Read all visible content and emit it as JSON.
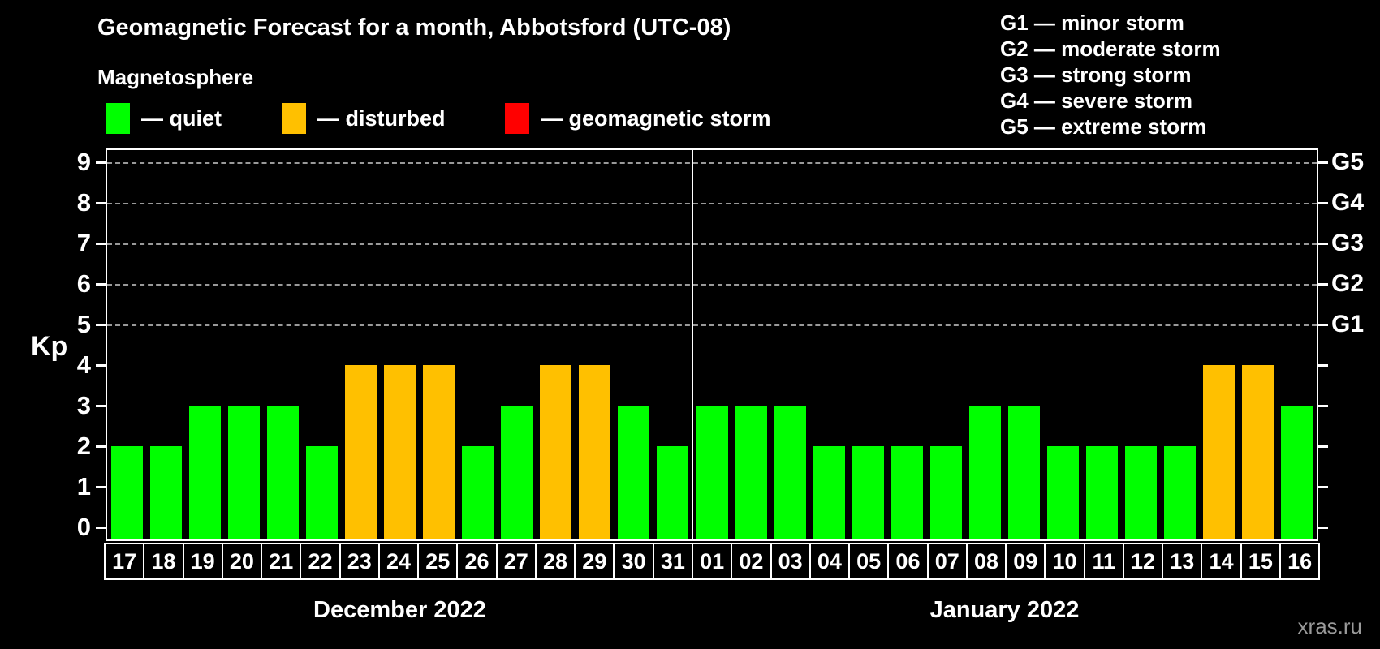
{
  "title": "Geomagnetic Forecast for a month, Abbotsford (UTC-08)",
  "subtitle": "Magnetosphere",
  "legend": [
    {
      "key": "quiet",
      "label": "— quiet",
      "color": "#00ff00"
    },
    {
      "key": "disturbed",
      "label": "— disturbed",
      "color": "#ffc000"
    },
    {
      "key": "storm",
      "label": "— geomagnetic storm",
      "color": "#ff0000"
    }
  ],
  "g_legend": [
    "G1 — minor storm",
    "G2 — moderate storm",
    "G3 — strong storm",
    "G4 — severe storm",
    "G5 — extreme storm"
  ],
  "watermark": "xras.ru",
  "chart_data": {
    "type": "bar",
    "ylabel": "Kp",
    "ylim": [
      0,
      9
    ],
    "yticks": [
      0,
      1,
      2,
      3,
      4,
      5,
      6,
      7,
      8,
      9
    ],
    "gridlines_at": [
      5,
      6,
      7,
      8,
      9
    ],
    "grid": "dashed horizontal at storm levels only",
    "legend_position": "top",
    "right_axis": [
      {
        "kp": 5,
        "label": "G1"
      },
      {
        "kp": 6,
        "label": "G2"
      },
      {
        "kp": 7,
        "label": "G3"
      },
      {
        "kp": 8,
        "label": "G4"
      },
      {
        "kp": 9,
        "label": "G5"
      }
    ],
    "status_colors": {
      "quiet": "#00ff00",
      "disturbed": "#ffc000",
      "storm": "#ff0000"
    },
    "months": [
      {
        "label": "December 2022",
        "bars": [
          {
            "day": "17",
            "kp": 2,
            "status": "quiet"
          },
          {
            "day": "18",
            "kp": 2,
            "status": "quiet"
          },
          {
            "day": "19",
            "kp": 3,
            "status": "quiet"
          },
          {
            "day": "20",
            "kp": 3,
            "status": "quiet"
          },
          {
            "day": "21",
            "kp": 3,
            "status": "quiet"
          },
          {
            "day": "22",
            "kp": 2,
            "status": "quiet"
          },
          {
            "day": "23",
            "kp": 4,
            "status": "disturbed"
          },
          {
            "day": "24",
            "kp": 4,
            "status": "disturbed"
          },
          {
            "day": "25",
            "kp": 4,
            "status": "disturbed"
          },
          {
            "day": "26",
            "kp": 2,
            "status": "quiet"
          },
          {
            "day": "27",
            "kp": 3,
            "status": "quiet"
          },
          {
            "day": "28",
            "kp": 4,
            "status": "disturbed"
          },
          {
            "day": "29",
            "kp": 4,
            "status": "disturbed"
          },
          {
            "day": "30",
            "kp": 3,
            "status": "quiet"
          },
          {
            "day": "31",
            "kp": 2,
            "status": "quiet"
          }
        ]
      },
      {
        "label": "January 2022",
        "bars": [
          {
            "day": "01",
            "kp": 3,
            "status": "quiet"
          },
          {
            "day": "02",
            "kp": 3,
            "status": "quiet"
          },
          {
            "day": "03",
            "kp": 3,
            "status": "quiet"
          },
          {
            "day": "04",
            "kp": 2,
            "status": "quiet"
          },
          {
            "day": "05",
            "kp": 2,
            "status": "quiet"
          },
          {
            "day": "06",
            "kp": 2,
            "status": "quiet"
          },
          {
            "day": "07",
            "kp": 2,
            "status": "quiet"
          },
          {
            "day": "08",
            "kp": 3,
            "status": "quiet"
          },
          {
            "day": "09",
            "kp": 3,
            "status": "quiet"
          },
          {
            "day": "10",
            "kp": 2,
            "status": "quiet"
          },
          {
            "day": "11",
            "kp": 2,
            "status": "quiet"
          },
          {
            "day": "12",
            "kp": 2,
            "status": "quiet"
          },
          {
            "day": "13",
            "kp": 2,
            "status": "quiet"
          },
          {
            "day": "14",
            "kp": 4,
            "status": "disturbed"
          },
          {
            "day": "15",
            "kp": 4,
            "status": "disturbed"
          },
          {
            "day": "16",
            "kp": 3,
            "status": "quiet"
          }
        ]
      }
    ]
  }
}
